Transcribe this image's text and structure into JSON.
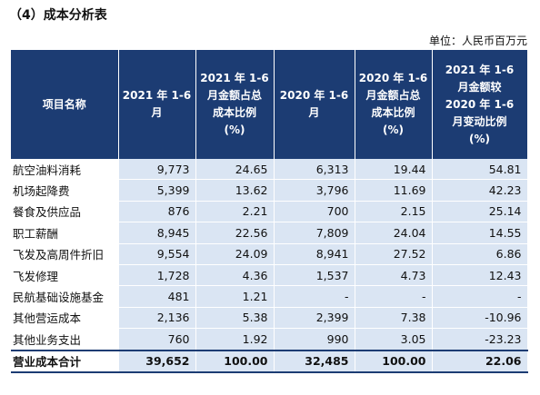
{
  "title": "（4）成本分析表",
  "unit": "单位：人民币百万元",
  "table": {
    "header": [
      "项目名称",
      "2021 年 1-6\n月",
      "2021 年 1-6\n月金额占总\n成本比例\n(%)",
      "2020 年 1-6\n月",
      "2020 年 1-6\n月金额占总\n成本比例\n(%)",
      "2021 年 1-6\n月金额较\n2020 年 1-6\n月变动比例\n(%)"
    ],
    "rows": [
      [
        "航空油料消耗",
        "9,773",
        "24.65",
        "6,313",
        "19.44",
        "54.81"
      ],
      [
        "机场起降费",
        "5,399",
        "13.62",
        "3,796",
        "11.69",
        "42.23"
      ],
      [
        "餐食及供应品",
        "876",
        "2.21",
        "700",
        "2.15",
        "25.14"
      ],
      [
        "职工薪酬",
        "8,945",
        "22.56",
        "7,809",
        "24.04",
        "14.55"
      ],
      [
        "飞发及高周件折旧",
        "9,554",
        "24.09",
        "8,941",
        "27.52",
        "6.86"
      ],
      [
        "飞发修理",
        "1,728",
        "4.36",
        "1,537",
        "4.73",
        "12.43"
      ],
      [
        "民航基础设施基金",
        "481",
        "1.21",
        "-",
        "-",
        "-"
      ],
      [
        "其他营运成本",
        "2,136",
        "5.38",
        "2,399",
        "7.38",
        "-10.96"
      ],
      [
        "其他业务支出",
        "760",
        "1.92",
        "990",
        "3.05",
        "-23.23"
      ]
    ],
    "total": [
      "营业成本合计",
      "39,652",
      "100.00",
      "32,485",
      "100.00",
      "22.06"
    ]
  }
}
